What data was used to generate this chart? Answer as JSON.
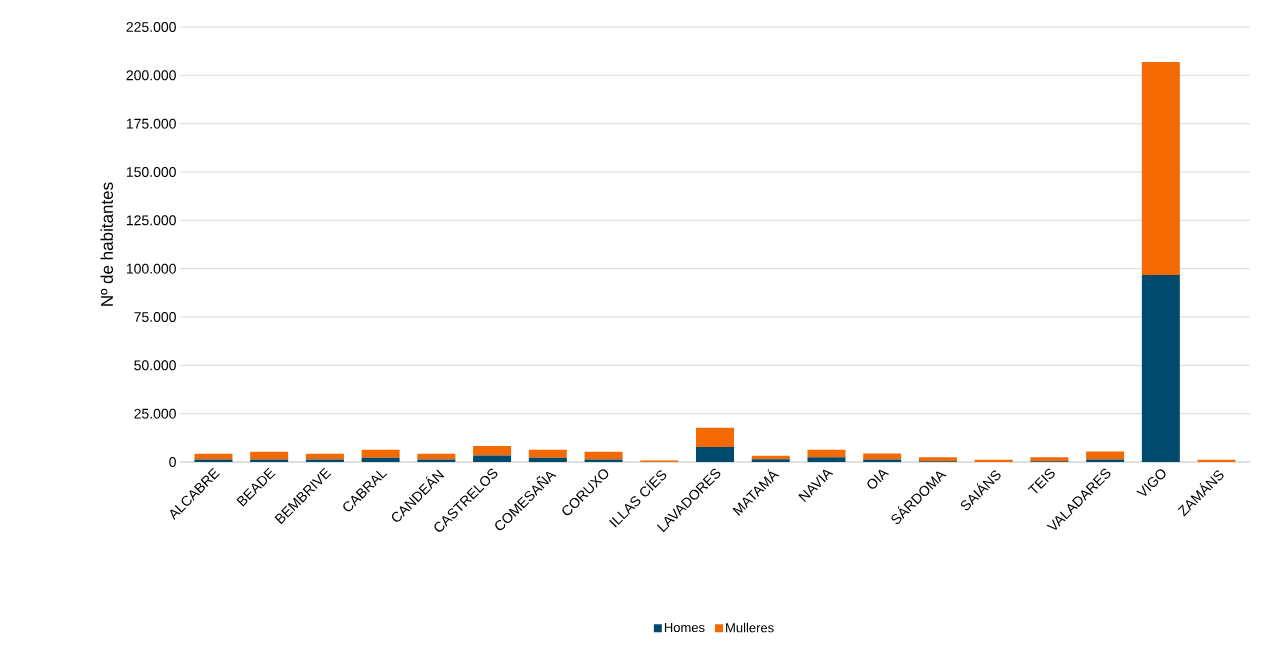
{
  "chart_data": {
    "type": "bar",
    "stacked": true,
    "ylabel": "Nº de habitantes",
    "categories": [
      "ALCABRE",
      "BEADE",
      "BEMBRIVE",
      "CABRAL",
      "CANDEÁN",
      "CASTRELOS",
      "COMESAÑA",
      "CORUXO",
      "ILLAS CÍES",
      "LAVADORES",
      "MATAMÁ",
      "NAVIA",
      "OIA",
      "SÁRDOMA",
      "SAIÁNS",
      "TEIS",
      "VALADARES",
      "VIGO",
      "ZAMÁNS"
    ],
    "series": [
      {
        "name": "Homes",
        "color": "#004a6e",
        "values": [
          1300,
          1300,
          1300,
          2200,
          1300,
          3400,
          2200,
          1300,
          0,
          7700,
          1400,
          2400,
          1300,
          400,
          null,
          400,
          1300,
          96700,
          null
        ]
      },
      {
        "name": "Mulleres",
        "color": "#f56a00",
        "values": [
          3000,
          4000,
          3000,
          4200,
          3000,
          4900,
          4200,
          4000,
          800,
          10000,
          1800,
          4000,
          3100,
          2000,
          1200,
          2000,
          4100,
          110200,
          1200
        ]
      }
    ],
    "ylim": [
      0,
      225000
    ],
    "yticks": [
      {
        "value": 0,
        "label": "0"
      },
      {
        "value": 25000,
        "label": "25.000"
      },
      {
        "value": 50000,
        "label": "50.000"
      },
      {
        "value": 75000,
        "label": "75.000"
      },
      {
        "value": 100000,
        "label": "100.000"
      },
      {
        "value": 125000,
        "label": "125.000"
      },
      {
        "value": 150000,
        "label": "150.000"
      },
      {
        "value": 175000,
        "label": "175.000"
      },
      {
        "value": 200000,
        "label": "200.000"
      },
      {
        "value": 225000,
        "label": "225.000"
      }
    ],
    "grid": "y",
    "legend": "bottom"
  }
}
